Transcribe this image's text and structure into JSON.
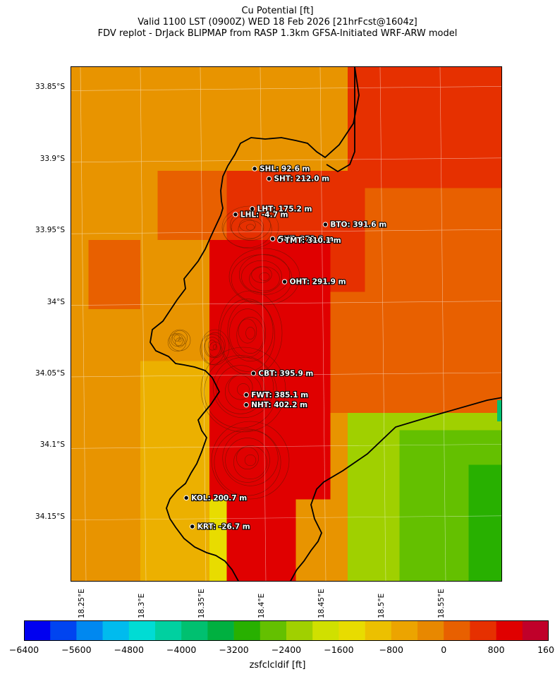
{
  "title": {
    "line1": "Cu Potential [ft]",
    "line2": "Valid 1100 LST (0900Z) WED 18 Feb 2026 [21hrFcst@1604z]",
    "line3": "FDV replot - DrJack BLIPMAP from RASP 1.3km GFSA-Initiated WRF-ARW model"
  },
  "lat_labels": [
    "33.85°S",
    "33.9°S",
    "33.95°S",
    "34°S",
    "34.05°S",
    "34.1°S",
    "34.15°S"
  ],
  "lon_labels": [
    "18.25°E",
    "18.3°E",
    "18.35°E",
    "18.4°E",
    "18.45°E",
    "18.5°E",
    "18.55°E"
  ],
  "stations": [
    {
      "label": "SHL: 92.6 m",
      "lat": -33.906,
      "lon": 18.393
    },
    {
      "label": "SHT: 212.0 m",
      "lat": -33.913,
      "lon": 18.405
    },
    {
      "label": "LHT: 175.2 m",
      "lat": -33.934,
      "lon": 18.391
    },
    {
      "label": "LHL: -4.7 m",
      "lat": -33.938,
      "lon": 18.377
    },
    {
      "label": "BTO: 391.6 m",
      "lat": -33.945,
      "lon": 18.452
    },
    {
      "label": "GUT: 272.8 m",
      "lat": -33.955,
      "lon": 18.408
    },
    {
      "label": "TMT: 310.1 m",
      "lat": -33.956,
      "lon": 18.414
    },
    {
      "label": "OHT: 291.9 m",
      "lat": -33.985,
      "lon": 18.418
    },
    {
      "label": "CBT: 395.9 m",
      "lat": -34.049,
      "lon": 18.392
    },
    {
      "label": "FWT: 385.1 m",
      "lat": -34.064,
      "lon": 18.386
    },
    {
      "label": "NHT: 402.2 m",
      "lat": -34.071,
      "lon": 18.386
    },
    {
      "label": "KOL: 200.7 m",
      "lat": -34.136,
      "lon": 18.336
    },
    {
      "label": "KRT: -26.7 m",
      "lat": -34.156,
      "lon": 18.341
    }
  ],
  "colorbar": {
    "label": "zsfclcldif [ft]",
    "ticks": [
      "−6400",
      "−5600",
      "−4800",
      "−4000",
      "−3200",
      "−2400",
      "−1600",
      "−800",
      "0",
      "800",
      "1600"
    ],
    "colors": [
      "#0000f0",
      "#0044f0",
      "#0088f0",
      "#00bbee",
      "#00dcd4",
      "#00d0a0",
      "#00c070",
      "#00b040",
      "#28b000",
      "#64c000",
      "#a0d000",
      "#d0e000",
      "#e8dc00",
      "#ecc000",
      "#eca400",
      "#e88800",
      "#e86000",
      "#e63000",
      "#e00000",
      "#c0002a"
    ]
  },
  "colors": {
    "orange": "#e89400",
    "dark_orange": "#e86000",
    "red_orange": "#e63000",
    "red": "#e00000",
    "amber": "#ecb000",
    "yellow": "#e8dc00",
    "light_green": "#a0d000",
    "green": "#64c000",
    "dark_green": "#28b000",
    "teal": "#00c070"
  }
}
